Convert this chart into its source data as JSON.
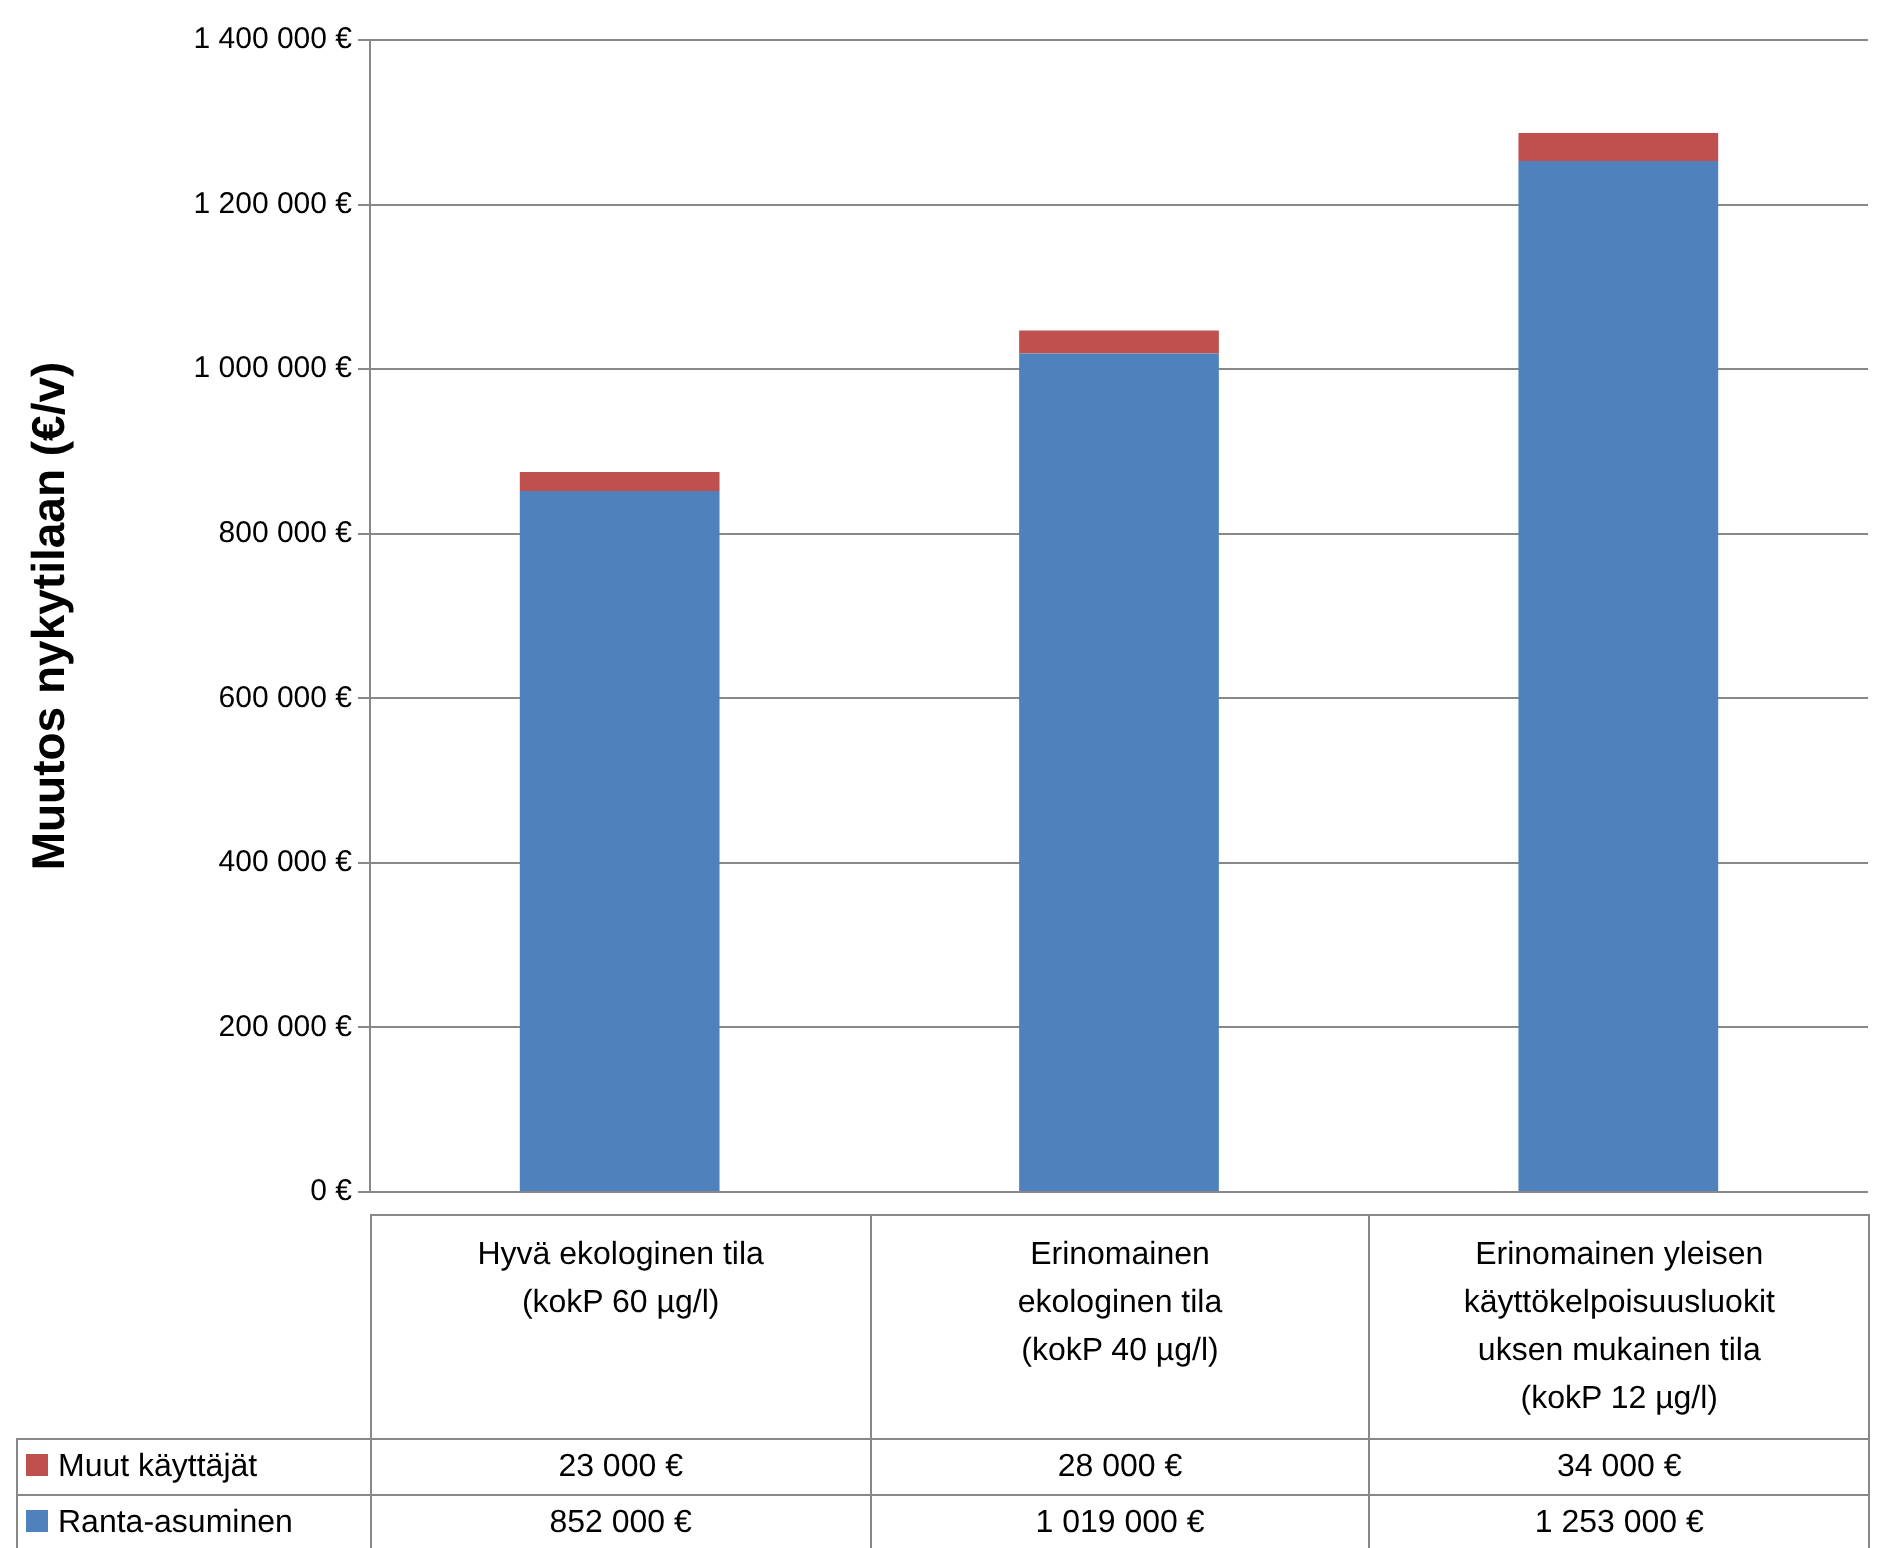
{
  "chart_data": {
    "type": "bar",
    "stacked": true,
    "ylabel": "Muutos nykytilaan (€/v)",
    "categories": [
      "Hyvä ekologinen tila\n(kokP 60 µg/l)",
      "Erinomainen\nekologinen tila\n(kokP 40 µg/l)",
      "Erinomainen yleisen\nkäyttökelpoisuusluokit\nuksen mukainen tila\n(kokP 12 µg/l)"
    ],
    "series": [
      {
        "name": "Ranta-asuminen",
        "color": "#4f81bd",
        "values": [
          852000,
          1019000,
          1253000
        ],
        "value_labels": [
          "852 000 €",
          "1 019 000 €",
          "1 253 000 €"
        ]
      },
      {
        "name": "Muut käyttäjät",
        "color": "#c0504d",
        "values": [
          23000,
          28000,
          34000
        ],
        "value_labels": [
          "23 000 €",
          "28 000 €",
          "34 000 €"
        ]
      }
    ],
    "ylim": [
      0,
      1400000
    ],
    "yticks": [
      {
        "value": 0,
        "label": "0 €"
      },
      {
        "value": 200000,
        "label": "200 000 €"
      },
      {
        "value": 400000,
        "label": "400 000 €"
      },
      {
        "value": 600000,
        "label": "600 000 €"
      },
      {
        "value": 800000,
        "label": "800 000 €"
      },
      {
        "value": 1000000,
        "label": "1 000 000 €"
      },
      {
        "value": 1200000,
        "label": "1 200 000 €"
      },
      {
        "value": 1400000,
        "label": "1 400 000 €"
      }
    ],
    "grid": "y",
    "legend": "bottom"
  }
}
